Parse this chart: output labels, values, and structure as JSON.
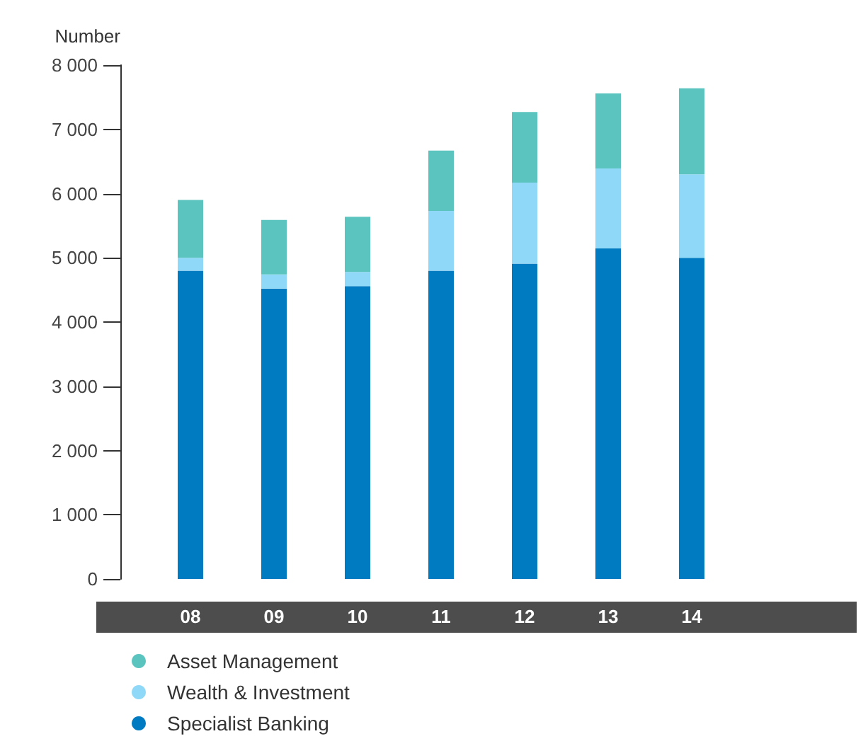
{
  "chart_data": {
    "type": "bar",
    "stacked": true,
    "ylabel": "Number",
    "categories": [
      "08",
      "09",
      "10",
      "11",
      "12",
      "13",
      "14"
    ],
    "series": [
      {
        "name": "Specialist Banking",
        "color": "#007bc2",
        "values": [
          4800,
          4520,
          4560,
          4800,
          4910,
          5150,
          5000
        ]
      },
      {
        "name": "Wealth & Investment",
        "color": "#8fd8f8",
        "values": [
          200,
          220,
          220,
          930,
          1260,
          1240,
          1300
        ]
      },
      {
        "name": "Asset Management",
        "color": "#5bc4bf",
        "values": [
          900,
          850,
          860,
          940,
          1100,
          1170,
          1340
        ]
      }
    ],
    "ylim": [
      0,
      8000
    ],
    "yticks": [
      {
        "value": 0,
        "label": "0"
      },
      {
        "value": 1000,
        "label": "1 000"
      },
      {
        "value": 2000,
        "label": "2 000"
      },
      {
        "value": 3000,
        "label": "3 000"
      },
      {
        "value": 4000,
        "label": "4 000"
      },
      {
        "value": 5000,
        "label": "5 000"
      },
      {
        "value": 6000,
        "label": "6 000"
      },
      {
        "value": 7000,
        "label": "7 000"
      },
      {
        "value": 8000,
        "label": "8 000"
      }
    ],
    "grid": false,
    "legend": "bottom left"
  }
}
